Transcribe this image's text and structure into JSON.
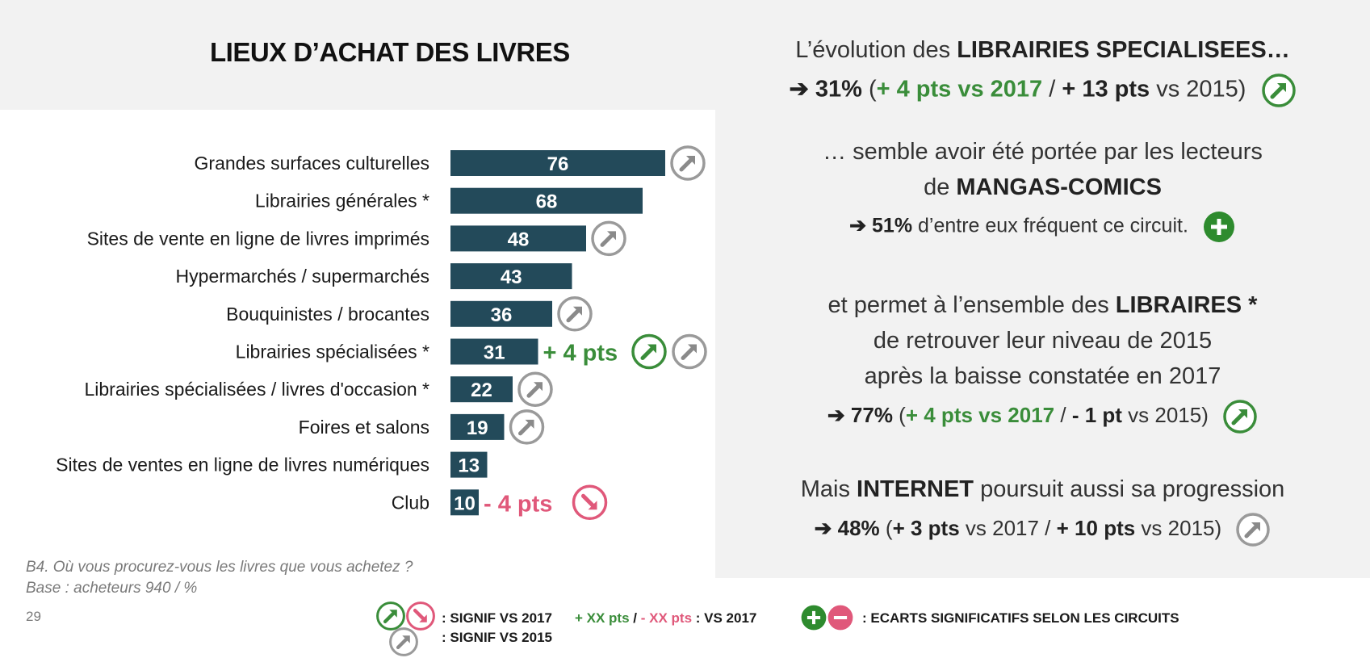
{
  "title": "LIEUX D’ACHAT DES LIVRES",
  "chart_data": {
    "type": "bar",
    "orientation": "horizontal",
    "xlim": [
      0,
      100
    ],
    "categories": [
      "Grandes surfaces culturelles",
      "Librairies générales *",
      "Sites de vente en ligne de livres imprimés",
      "Hypermarchés / supermarchés",
      "Bouquinistes / brocantes",
      "Librairies spécialisées *",
      "Librairies spécialisées / livres d'occasion *",
      "Foires et salons",
      "Sites de ventes en ligne de livres numériques",
      "Club"
    ],
    "values": [
      76,
      68,
      48,
      43,
      36,
      31,
      22,
      19,
      13,
      10
    ],
    "bar_color": "#234a5a",
    "annotations": [
      {
        "category_index": 0,
        "signif_2015": "up"
      },
      {
        "category_index": 2,
        "signif_2015": "up"
      },
      {
        "category_index": 4,
        "signif_2015": "up"
      },
      {
        "category_index": 5,
        "delta_text": "+ 4 pts",
        "signif_2017": "up",
        "signif_2015": "up"
      },
      {
        "category_index": 6,
        "signif_2015": "up"
      },
      {
        "category_index": 7,
        "signif_2015": "up"
      },
      {
        "category_index": 9,
        "delta_text": "- 4 pts",
        "signif_2017": "down"
      }
    ]
  },
  "right_panel": {
    "p1": {
      "line1_pre": "L’évolution des ",
      "line1_bold": "LIBRAIRIES SPECIALISEES…",
      "line2_arrow": "➔",
      "line2_value": "31%",
      "line2_open": " (",
      "line2_green": "+ 4 pts vs 2017",
      "line2_sep": " / ",
      "line2_bold": "+ 13 pts",
      "line2_end": " vs 2015)"
    },
    "p2": {
      "line1": "… semble avoir été portée par les lecteurs",
      "line2_pre": "de ",
      "line2_bold": "MANGAS-COMICS",
      "line3_arrow": "➔",
      "line3_value": "51%",
      "line3_rest": " d’entre eux fréquent ce circuit."
    },
    "p3": {
      "line1_pre": "et permet à l’ensemble des ",
      "line1_bold": "LIBRAIRES *",
      "line2": "de retrouver leur niveau de 2015",
      "line3": "après la baisse constatée en 2017",
      "line4_arrow": "➔",
      "line4_value": "77%",
      "line4_open": " (",
      "line4_green": "+ 4 pts vs 2017",
      "line4_sep": " / ",
      "line4_bold": "- 1 pt",
      "line4_end": " vs 2015)"
    },
    "p4": {
      "line1_pre": "Mais ",
      "line1_bold": "INTERNET",
      "line1_rest": " poursuit aussi sa progression",
      "line2_arrow": "➔",
      "line2_value": "48%",
      "line2_open": " (",
      "line2_bold1": "+ 3 pts",
      "line2_mid": " vs 2017 / ",
      "line2_bold2": "+ 10 pts",
      "line2_end": " vs 2015)"
    }
  },
  "footnote": {
    "question": "B4. Où vous procurez-vous les livres que vous achetez ?",
    "base": "Base : acheteurs 940 / %"
  },
  "page_number": "29",
  "legend": {
    "signif_2017": ": SIGNIF VS 2017",
    "signif_2015": ": SIGNIF VS 2015",
    "pos_pts": "+ XX pts",
    "slash": " / ",
    "neg_pts": "- XX pts",
    "vs_2017": " : VS 2017",
    "ecarts": ": ECARTS SIGNIFICATIFS SELON LES CIRCUITS"
  },
  "colors": {
    "green": "#3a8d3a",
    "pink": "#e0587a",
    "grey_icon": "#9a9a9a",
    "plus_circle": "#2e8b2e"
  },
  "icons": [
    "arrow-up-right-circle-icon",
    "arrow-down-right-circle-icon",
    "plus-circle-icon",
    "minus-circle-icon",
    "arrow-right-icon"
  ]
}
